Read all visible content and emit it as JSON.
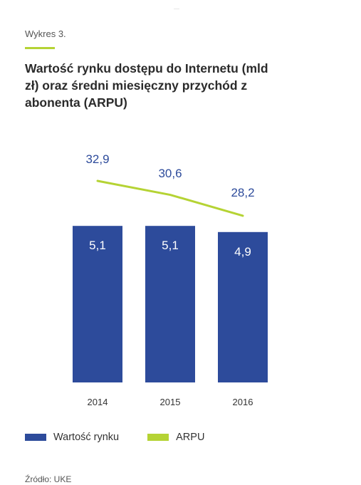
{
  "header": {
    "label": "Wykres 3.",
    "title": "Wartość rynku dostępu do Internetu (mld zł) oraz średni miesięczny przychód z abonenta (ARPU)"
  },
  "colors": {
    "bar": "#2d4b9b",
    "line": "#b5d334",
    "line_label": "#2d4b9b",
    "bar_label": "#ffffff",
    "axis_text": "#333333"
  },
  "chart_data": {
    "type": "bar",
    "categories": [
      "2014",
      "2015",
      "2016"
    ],
    "series": [
      {
        "name": "Wartość rynku",
        "type": "bar",
        "values": [
          5.1,
          5.1,
          4.9
        ],
        "labels": [
          "5,1",
          "5,1",
          "4,9"
        ]
      },
      {
        "name": "ARPU",
        "type": "line",
        "values": [
          32.9,
          30.6,
          28.2
        ],
        "labels": [
          "32,9",
          "30,6",
          "28,2"
        ]
      }
    ],
    "title": "Wartość rynku dostępu do Internetu (mld zł) oraz średni miesięczny przychód z abonenta (ARPU)",
    "xlabel": "",
    "ylabel": "",
    "grid": false,
    "legend_position": "bottom-left"
  },
  "legend": {
    "items": [
      {
        "label": "Wartość rynku"
      },
      {
        "label": "ARPU"
      }
    ]
  },
  "footer": {
    "source": "Źródło: UKE"
  }
}
